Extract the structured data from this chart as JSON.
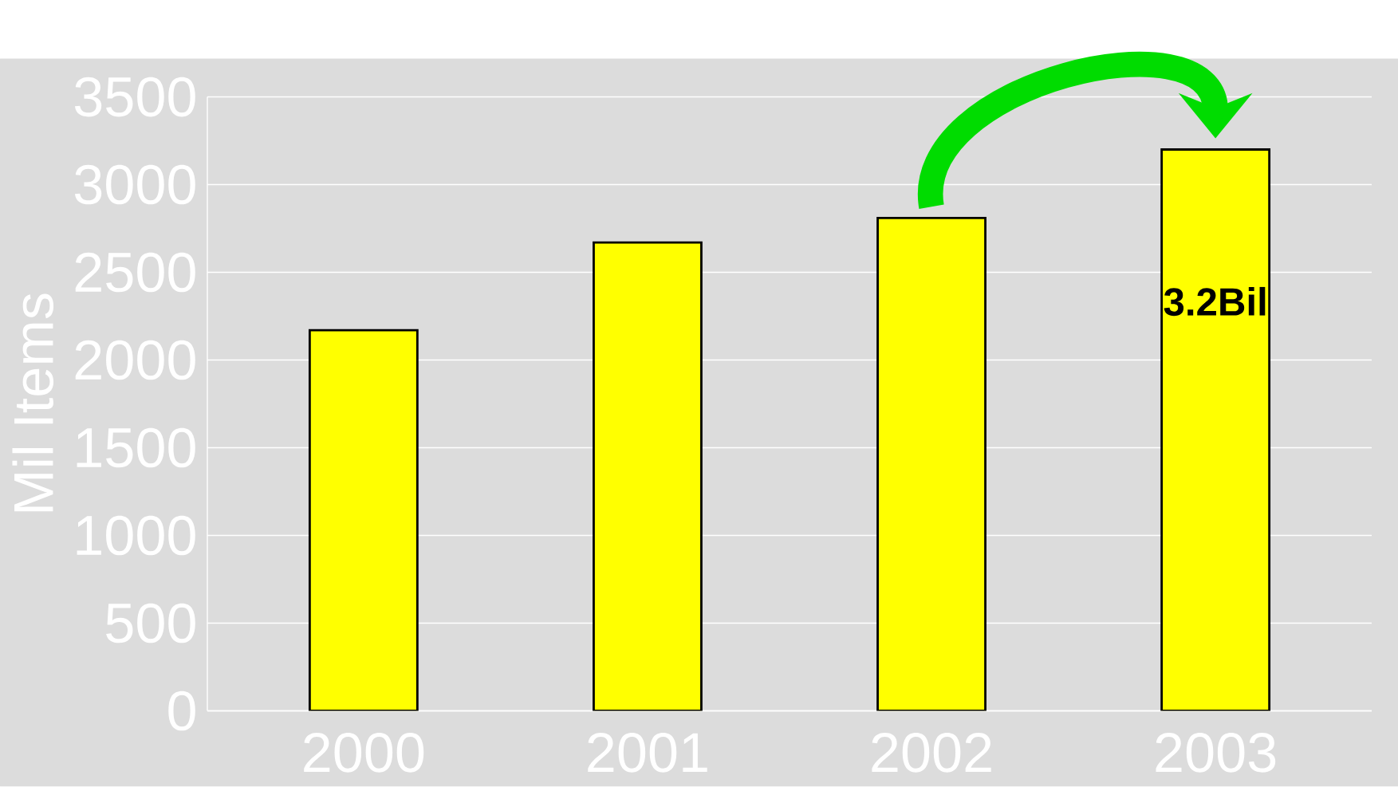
{
  "chart_data": {
    "type": "bar",
    "ylabel": "Mil Items",
    "categories": [
      "2000",
      "2001",
      "2002",
      "2003"
    ],
    "values": [
      2170,
      2670,
      2810,
      3200
    ],
    "color": "#ffff00",
    "ylim": [
      0,
      3500
    ],
    "yticks": [
      0,
      500,
      1000,
      1500,
      2000,
      2500,
      3000,
      3500
    ],
    "grid": "y",
    "annotations": [
      "3.2Bil"
    ]
  }
}
